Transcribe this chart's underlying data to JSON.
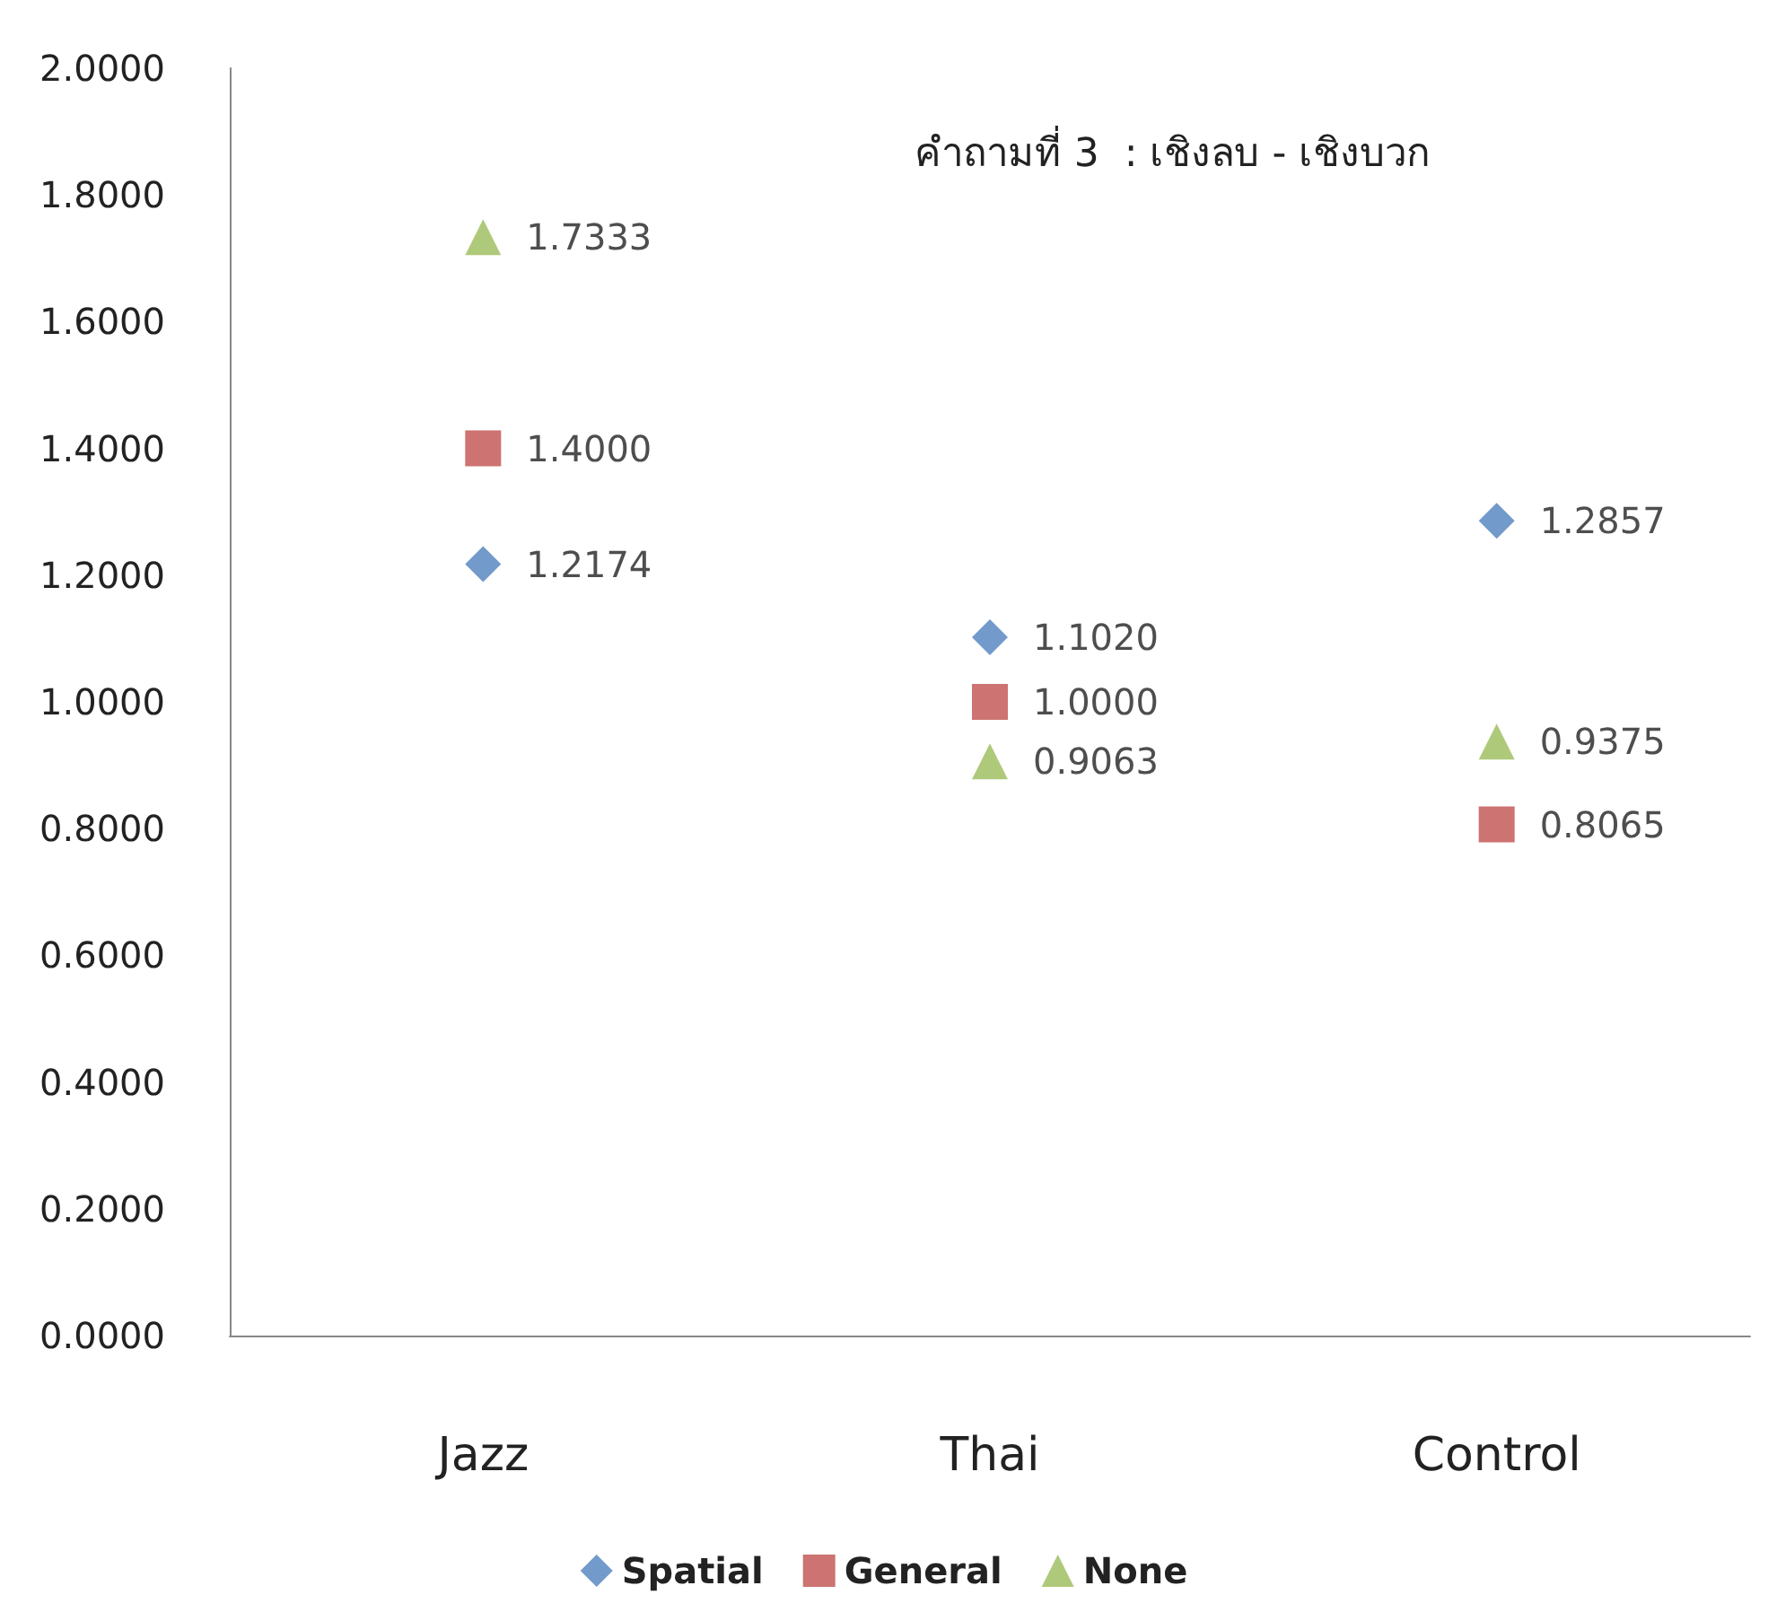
{
  "chart_data": {
    "type": "scatter",
    "title": "คำถามที่ 3  : เชิงลบ - เชิงบวก",
    "categories": [
      "Jazz",
      "Thai",
      "Control"
    ],
    "series": [
      {
        "name": "Spatial",
        "color": "#4f81bd",
        "marker": "diamond",
        "values": [
          1.2174,
          1.102,
          1.2857
        ],
        "value_labels": [
          "1.2174",
          "1.1020",
          "1.2857"
        ]
      },
      {
        "name": "General",
        "color": "#c0504d",
        "marker": "square",
        "values": [
          1.4,
          1.0,
          0.8065
        ],
        "value_labels": [
          "1.4000",
          "1.0000",
          "0.8065"
        ]
      },
      {
        "name": "None",
        "color": "#9bbb59",
        "marker": "triangle",
        "values": [
          1.7333,
          0.9063,
          0.9375
        ],
        "value_labels": [
          "1.7333",
          "0.9063",
          "0.9375"
        ]
      }
    ],
    "ylim": [
      0,
      2
    ],
    "yticks": [
      {
        "value": 0,
        "label": "0.0000"
      },
      {
        "value": 0.2,
        "label": "0.2000"
      },
      {
        "value": 0.4,
        "label": "0.4000"
      },
      {
        "value": 0.6,
        "label": "0.6000"
      },
      {
        "value": 0.8,
        "label": "0.8000"
      },
      {
        "value": 1,
        "label": "1.0000"
      },
      {
        "value": 1.2,
        "label": "1.2000"
      },
      {
        "value": 1.4,
        "label": "1.4000"
      },
      {
        "value": 1.6,
        "label": "1.6000"
      },
      {
        "value": 1.8,
        "label": "1.8000"
      },
      {
        "value": 2,
        "label": "2.0000"
      }
    ],
    "grid": false,
    "legend": "bottom"
  }
}
